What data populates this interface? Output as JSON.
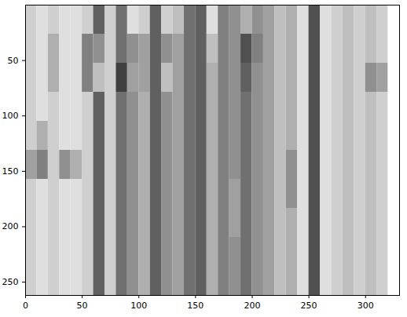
{
  "chart_data": {
    "type": "heatmap",
    "color": "#404040",
    "xlim": [
      0,
      330
    ],
    "ylim": [
      262,
      0
    ],
    "xticks": [
      0,
      50,
      100,
      150,
      200,
      250,
      300
    ],
    "yticks": [
      50,
      100,
      150,
      200,
      250
    ],
    "grid": false,
    "x_edges": [
      0,
      10,
      20,
      30,
      40,
      50,
      60,
      70,
      80,
      90,
      100,
      110,
      120,
      130,
      140,
      150,
      160,
      170,
      180,
      190,
      200,
      210,
      220,
      230,
      240,
      250,
      260,
      270,
      280,
      290,
      300,
      310,
      320,
      330
    ],
    "y_edges": [
      0,
      26.2,
      52.4,
      78.6,
      104.8,
      131,
      157.2,
      183.4,
      209.6,
      235.8,
      262
    ],
    "cells": [
      [
        0.35,
        0.3,
        0.35,
        0.3,
        0.3,
        0.35,
        0.7,
        0.35,
        0.65,
        0.3,
        0.35,
        0.7,
        0.35,
        0.4,
        0.65,
        0.7,
        0.3,
        0.6,
        0.55,
        0.45,
        0.55,
        0.5,
        0.4,
        0.45,
        0.3,
        0.75,
        0.3,
        0.35,
        0.4,
        0.35,
        0.4,
        0.35,
        0.2
      ],
      [
        0.35,
        0.3,
        0.45,
        0.3,
        0.3,
        0.6,
        0.55,
        0.35,
        0.65,
        0.55,
        0.5,
        0.7,
        0.55,
        0.5,
        0.65,
        0.7,
        0.4,
        0.6,
        0.55,
        0.75,
        0.6,
        0.5,
        0.4,
        0.45,
        0.3,
        0.75,
        0.3,
        0.35,
        0.4,
        0.35,
        0.4,
        0.35,
        0.2
      ],
      [
        0.35,
        0.3,
        0.45,
        0.3,
        0.3,
        0.6,
        0.4,
        0.35,
        0.8,
        0.5,
        0.5,
        0.7,
        0.4,
        0.5,
        0.65,
        0.7,
        0.45,
        0.6,
        0.55,
        0.7,
        0.55,
        0.5,
        0.4,
        0.45,
        0.3,
        0.75,
        0.3,
        0.35,
        0.4,
        0.35,
        0.55,
        0.5,
        0.2
      ],
      [
        0.35,
        0.3,
        0.35,
        0.3,
        0.3,
        0.35,
        0.7,
        0.35,
        0.65,
        0.55,
        0.45,
        0.7,
        0.55,
        0.5,
        0.65,
        0.7,
        0.45,
        0.6,
        0.55,
        0.65,
        0.55,
        0.5,
        0.4,
        0.45,
        0.3,
        0.75,
        0.3,
        0.35,
        0.4,
        0.35,
        0.4,
        0.35,
        0.2
      ],
      [
        0.35,
        0.45,
        0.35,
        0.3,
        0.3,
        0.35,
        0.7,
        0.35,
        0.65,
        0.55,
        0.45,
        0.7,
        0.55,
        0.5,
        0.65,
        0.7,
        0.45,
        0.6,
        0.55,
        0.65,
        0.55,
        0.5,
        0.4,
        0.45,
        0.3,
        0.75,
        0.3,
        0.35,
        0.4,
        0.35,
        0.4,
        0.35,
        0.2
      ],
      [
        0.5,
        0.6,
        0.35,
        0.55,
        0.45,
        0.35,
        0.7,
        0.35,
        0.65,
        0.55,
        0.45,
        0.7,
        0.55,
        0.5,
        0.65,
        0.7,
        0.45,
        0.6,
        0.55,
        0.65,
        0.55,
        0.5,
        0.4,
        0.55,
        0.3,
        0.75,
        0.3,
        0.35,
        0.4,
        0.35,
        0.4,
        0.35,
        0.2
      ],
      [
        0.35,
        0.3,
        0.35,
        0.3,
        0.3,
        0.35,
        0.7,
        0.35,
        0.65,
        0.55,
        0.45,
        0.7,
        0.55,
        0.5,
        0.65,
        0.7,
        0.45,
        0.6,
        0.5,
        0.65,
        0.55,
        0.5,
        0.4,
        0.55,
        0.3,
        0.75,
        0.3,
        0.35,
        0.4,
        0.35,
        0.4,
        0.35,
        0.2
      ],
      [
        0.35,
        0.3,
        0.35,
        0.3,
        0.3,
        0.35,
        0.7,
        0.35,
        0.65,
        0.55,
        0.45,
        0.7,
        0.55,
        0.5,
        0.65,
        0.7,
        0.45,
        0.6,
        0.5,
        0.65,
        0.55,
        0.5,
        0.4,
        0.45,
        0.3,
        0.75,
        0.3,
        0.35,
        0.4,
        0.35,
        0.4,
        0.35,
        0.2
      ],
      [
        0.35,
        0.3,
        0.35,
        0.3,
        0.3,
        0.35,
        0.7,
        0.35,
        0.65,
        0.55,
        0.45,
        0.7,
        0.55,
        0.5,
        0.65,
        0.7,
        0.45,
        0.6,
        0.55,
        0.65,
        0.55,
        0.5,
        0.4,
        0.45,
        0.3,
        0.75,
        0.3,
        0.35,
        0.4,
        0.35,
        0.4,
        0.35,
        0.2
      ],
      [
        0.35,
        0.3,
        0.35,
        0.3,
        0.3,
        0.35,
        0.7,
        0.35,
        0.65,
        0.55,
        0.45,
        0.7,
        0.55,
        0.5,
        0.65,
        0.7,
        0.45,
        0.6,
        0.55,
        0.65,
        0.55,
        0.5,
        0.4,
        0.45,
        0.3,
        0.75,
        0.3,
        0.35,
        0.4,
        0.35,
        0.4,
        0.35,
        0.2
      ]
    ]
  }
}
